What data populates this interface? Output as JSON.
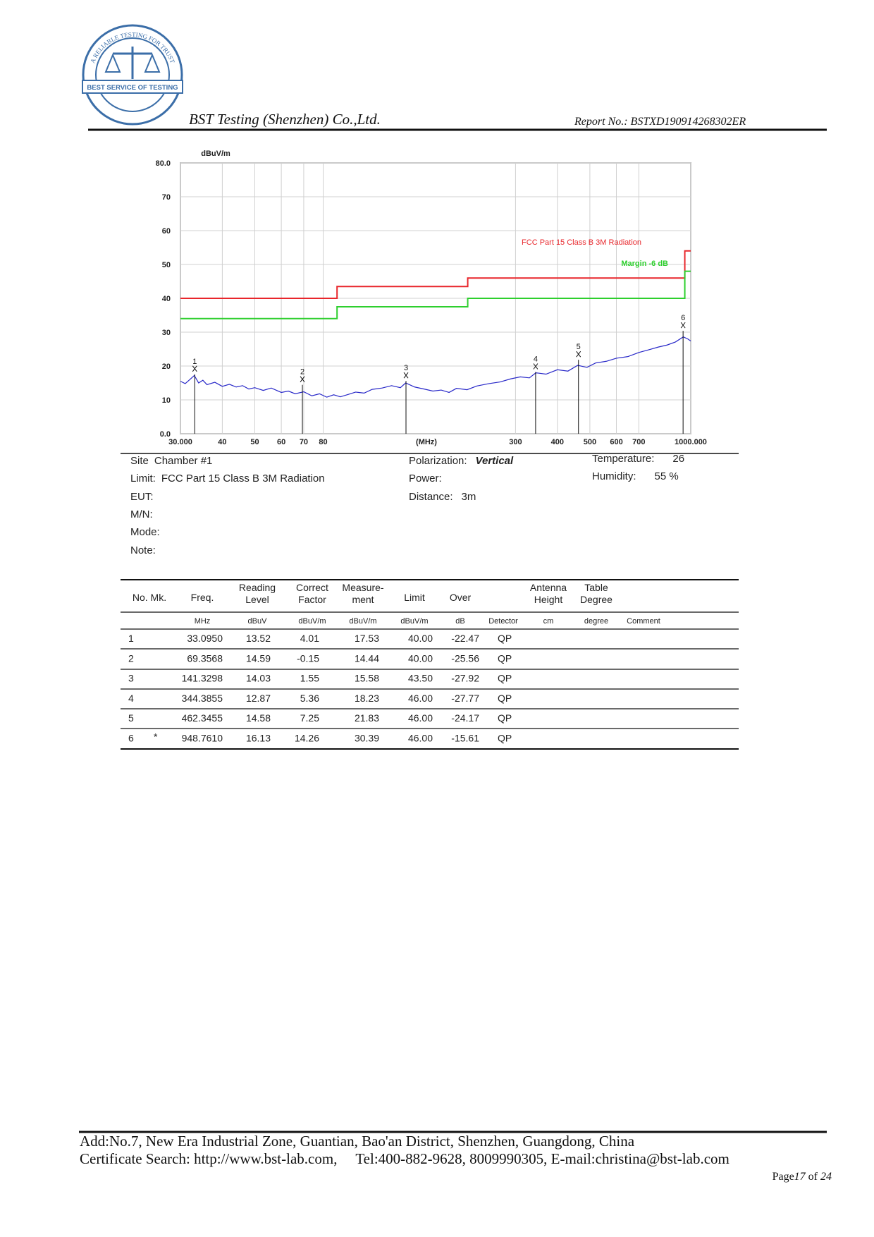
{
  "header": {
    "logo_top": "A RELIABLE TESTING FOR TRUST",
    "logo_band": "BEST SERVICE OF TESTING",
    "company": "BST Testing (Shenzhen) Co.,Ltd.",
    "report_no": "Report No.: BSTXD190914268302ER"
  },
  "chart_data": {
    "type": "line",
    "y_unit": "dBuV/m",
    "xlabel": "(MHz)",
    "xscale": "log",
    "grid": true,
    "xlim": [
      30,
      1000
    ],
    "ylim": [
      0,
      80
    ],
    "xticks": [
      {
        "value": 30,
        "label": "30.000"
      },
      40,
      50,
      60,
      70,
      80,
      300,
      400,
      500,
      600,
      700,
      {
        "value": 1000,
        "label": "1000.000"
      }
    ],
    "yticks": [
      {
        "value": 0,
        "label": "0.0"
      },
      10,
      20,
      30,
      40,
      50,
      60,
      70,
      {
        "value": 80,
        "label": "80.0"
      }
    ],
    "series": [
      {
        "name": "FCC  Part 15 Class B 3M Radiation",
        "color": "#e8262b",
        "x": [
          30,
          88,
          88,
          216,
          216,
          960,
          960,
          1000
        ],
        "values": [
          40,
          40,
          43.5,
          43.5,
          46,
          46,
          54,
          54
        ]
      },
      {
        "name": "Margin -6 dB",
        "color": "#2ecf2e",
        "x": [
          30,
          88,
          88,
          216,
          216,
          960,
          960,
          1000
        ],
        "values": [
          34,
          34,
          37.5,
          37.5,
          40,
          40,
          48,
          48
        ]
      },
      {
        "name": "Vertical",
        "color": "#2727c8",
        "x": [
          30,
          31,
          32,
          33,
          34,
          35,
          36,
          38,
          40,
          42,
          44,
          46,
          48,
          50,
          53,
          56,
          60,
          63,
          66,
          70,
          74,
          78,
          82,
          86,
          90,
          95,
          100,
          106,
          112,
          120,
          128,
          136,
          141,
          150,
          160,
          170,
          180,
          190,
          200,
          215,
          230,
          250,
          270,
          290,
          310,
          330,
          345,
          370,
          400,
          430,
          460,
          490,
          520,
          560,
          600,
          650,
          700,
          750,
          800,
          850,
          900,
          950,
          980,
          1000
        ],
        "values": [
          15.5,
          14.8,
          16,
          17.2,
          15,
          15.8,
          14.5,
          15.2,
          14,
          14.6,
          13.8,
          14.2,
          13.2,
          13.6,
          12.8,
          13.5,
          12.2,
          12.6,
          11.8,
          12.4,
          11.2,
          11.8,
          10.8,
          11.5,
          10.9,
          11.6,
          12.3,
          12,
          13.1,
          13.5,
          14.2,
          13.6,
          15,
          13.8,
          13.2,
          12.6,
          12.9,
          12.2,
          13.4,
          13,
          14.1,
          14.8,
          15.3,
          16.2,
          16.8,
          16.5,
          18,
          17.6,
          18.9,
          18.5,
          20.2,
          19.6,
          20.9,
          21.4,
          22.3,
          22.8,
          24,
          24.8,
          25.6,
          26.2,
          27.1,
          28.6,
          28,
          27.4
        ]
      }
    ],
    "markers": {
      "labels": [
        "1",
        "2",
        "3",
        "4",
        "5",
        "6"
      ],
      "x": [
        33.095,
        69.3568,
        141.3298,
        344.3855,
        462.3455,
        948.761
      ],
      "values": [
        17.53,
        14.44,
        15.58,
        18.23,
        21.83,
        30.39
      ]
    }
  },
  "info": {
    "left": [
      {
        "label": "Site",
        "value": "Chamber #1"
      },
      {
        "label": "Limit:",
        "value": "FCC  Part 15 Class B 3M Radiation"
      },
      {
        "label": "EUT:"
      },
      {
        "label": "M/N:"
      },
      {
        "label": "Mode:"
      },
      {
        "label": "Note:"
      }
    ],
    "middle": [
      {
        "label": "Polarization:",
        "value": "Vertical"
      },
      {
        "label": "Power:"
      },
      {
        "label": "Distance:",
        "value": "3m"
      }
    ],
    "right": [
      {
        "label": "Temperature:",
        "value": "26"
      },
      {
        "label": "Humidity:",
        "value": "55 %"
      }
    ]
  },
  "table": {
    "columns": [
      {
        "head": [
          "No. Mk."
        ]
      },
      {
        "head": [
          "Freq."
        ],
        "unit": "MHz"
      },
      {
        "head": [
          "Reading",
          "Level"
        ],
        "unit": "dBuV"
      },
      {
        "head": [
          "Correct",
          "Factor"
        ],
        "unit": "dBuV/m"
      },
      {
        "head": [
          "Measure-",
          "ment"
        ],
        "unit": "dBuV/m"
      },
      {
        "head": [
          "Limit"
        ],
        "unit": "dBuV/m"
      },
      {
        "head": [
          "Over"
        ],
        "unit": "dB"
      },
      {
        "unit": "Detector"
      },
      {
        "head": [
          "Antenna",
          "Height"
        ],
        "unit": "cm"
      },
      {
        "head": [
          "Table",
          "Degree"
        ],
        "unit": "degree"
      },
      {
        "unit": "Comment"
      }
    ],
    "rows": [
      {
        "no": "1",
        "cells": [
          "33.0950",
          "13.52",
          "4.01",
          "17.53",
          "40.00",
          "-22.47",
          "QP"
        ]
      },
      {
        "no": "2",
        "cells": [
          "69.3568",
          "14.59",
          "-0.15",
          "14.44",
          "40.00",
          "-25.56",
          "QP"
        ]
      },
      {
        "no": "3",
        "cells": [
          "141.3298",
          "14.03",
          "1.55",
          "15.58",
          "43.50",
          "-27.92",
          "QP"
        ]
      },
      {
        "no": "4",
        "cells": [
          "344.3855",
          "12.87",
          "5.36",
          "18.23",
          "46.00",
          "-27.77",
          "QP"
        ]
      },
      {
        "no": "5",
        "cells": [
          "462.3455",
          "14.58",
          "7.25",
          "21.83",
          "46.00",
          "-24.17",
          "QP"
        ]
      },
      {
        "no": "6",
        "mk": "*",
        "cells": [
          "948.7610",
          "16.13",
          "14.26",
          "30.39",
          "46.00",
          "-15.61",
          "QP"
        ]
      }
    ]
  },
  "footer": {
    "address": "Add:No.7, New Era Industrial Zone, Guantian, Bao'an District, Shenzhen, Guangdong, China",
    "contact": "Certificate Search: http://www.bst-lab.com,     Tel:400-882-9628, 8009990305, E-mail:christina@bst-lab.com",
    "page_word": "Page",
    "page": "17",
    "of_word": "of",
    "pages": "24"
  }
}
